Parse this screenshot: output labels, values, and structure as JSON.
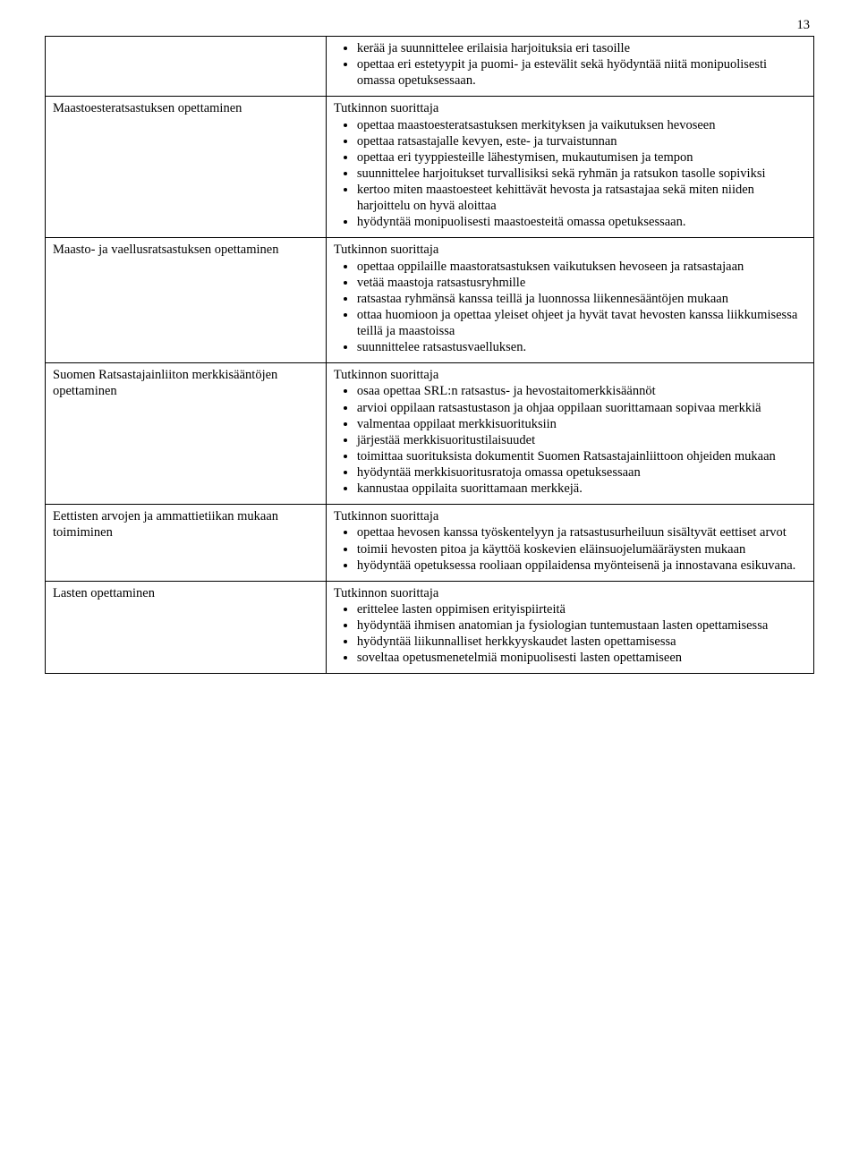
{
  "page_number": "13",
  "rows": [
    {
      "left": "",
      "lead": "",
      "items": [
        "kerää ja suunnittelee erilaisia harjoituksia eri tasoille",
        "opettaa eri estetyypit ja puomi- ja estevälit sekä hyödyntää niitä monipuolisesti omassa opetuksessaan."
      ]
    },
    {
      "left": "Maastoesteratsastuksen opettaminen",
      "lead": "Tutkinnon suorittaja",
      "items": [
        "opettaa maastoesteratsastuksen merkityksen ja vaikutuksen hevoseen",
        "opettaa ratsastajalle kevyen, este- ja turvaistunnan",
        "opettaa eri tyyppiesteille lähestymisen, mukautumisen ja tempon",
        "suunnittelee harjoitukset turvallisiksi sekä ryhmän ja ratsukon tasolle sopiviksi",
        "kertoo miten maastoesteet kehittävät hevosta ja ratsastajaa sekä miten niiden harjoittelu on hyvä aloittaa",
        "hyödyntää monipuolisesti maastoesteitä omassa opetuksessaan."
      ]
    },
    {
      "left": "Maasto- ja vaellusratsastuksen opettaminen",
      "lead": "Tutkinnon suorittaja",
      "items": [
        "opettaa oppilaille maastoratsastuksen vaikutuksen hevoseen ja ratsastajaan",
        "vetää maastoja ratsastusryhmille",
        "ratsastaa ryhmänsä kanssa teillä ja luonnossa liikennesääntöjen mukaan",
        "ottaa huomioon ja opettaa yleiset ohjeet ja hyvät tavat hevosten kanssa liikkumisessa teillä ja maastoissa",
        "suunnittelee ratsastusvaelluksen."
      ]
    },
    {
      "left": "Suomen Ratsastajainliiton merkkisääntöjen opettaminen",
      "lead": "Tutkinnon suorittaja",
      "items": [
        "osaa opettaa SRL:n ratsastus- ja hevostaitomerkkisäännöt",
        "arvioi oppilaan ratsastustason ja ohjaa oppilaan suorittamaan sopivaa merkkiä",
        "valmentaa oppilaat merkkisuorituksiin",
        "järjestää merkkisuoritustilaisuudet",
        "toimittaa suorituksista dokumentit Suomen Ratsastajainliittoon ohjeiden mukaan",
        "hyödyntää merkkisuoritusratoja omassa opetuksessaan",
        "kannustaa oppilaita suorittamaan merkkejä."
      ]
    },
    {
      "left": "Eettisten arvojen ja ammattietiikan mukaan toimiminen",
      "lead": "Tutkinnon suorittaja",
      "items": [
        "opettaa hevosen kanssa työskentelyyn ja ratsastusurheiluun sisältyvät eettiset arvot",
        "toimii hevosten pitoa ja käyttöä koskevien eläinsuojelumääräysten mukaan",
        "hyödyntää opetuksessa rooliaan oppilaidensa myönteisenä ja innostavana esikuvana."
      ]
    },
    {
      "left": "Lasten opettaminen",
      "lead": "Tutkinnon suorittaja",
      "items": [
        "erittelee lasten oppimisen erityispiirteitä",
        "hyödyntää ihmisen anatomian ja fysiologian tuntemustaan lasten opettamisessa",
        "hyödyntää liikunnalliset herkkyyskaudet lasten opettamisessa",
        "soveltaa opetusmenetelmiä monipuolisesti lasten opettamiseen"
      ]
    }
  ]
}
